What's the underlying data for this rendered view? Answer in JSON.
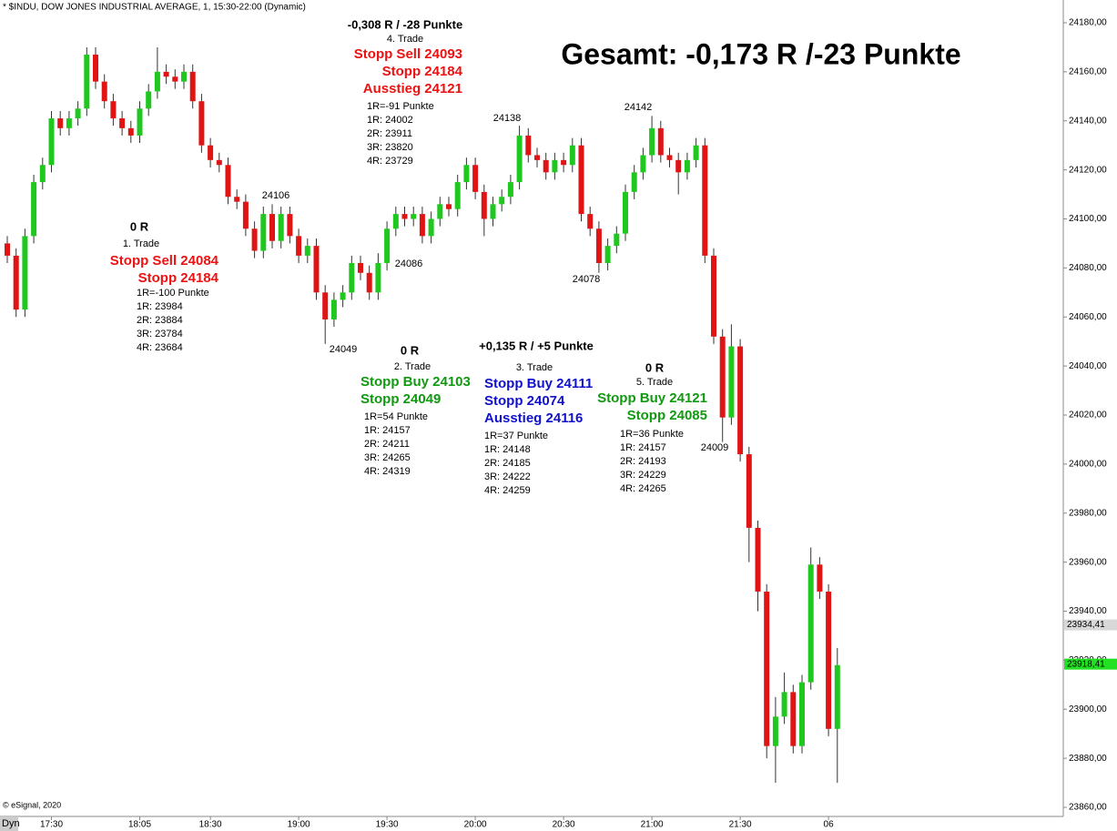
{
  "chart_data": {
    "type": "candlestick",
    "header": "* $INDU, DOW JONES INDUSTRIAL AVERAGE, 1, 15:30-22:00 (Dynamic)",
    "title": "Gesamt: -0,173 R /-23 Punkte",
    "copyright": "© eSignal, 2020",
    "mode_label": "Dyn",
    "up_color": "#1ec81e",
    "down_color": "#e01414",
    "categories": [
      null,
      null,
      null,
      null,
      null,
      "17:30",
      null,
      null,
      null,
      null,
      null,
      null,
      null,
      null,
      null,
      "18:05",
      null,
      null,
      null,
      null,
      null,
      null,
      null,
      "18:30",
      null,
      null,
      null,
      null,
      null,
      null,
      null,
      null,
      null,
      "19:00",
      null,
      null,
      null,
      null,
      null,
      null,
      null,
      null,
      null,
      "19:30",
      null,
      null,
      null,
      null,
      null,
      null,
      null,
      null,
      null,
      "20:00",
      null,
      null,
      null,
      null,
      null,
      null,
      null,
      null,
      null,
      "20:30",
      null,
      null,
      null,
      null,
      null,
      null,
      null,
      null,
      null,
      "21:00",
      null,
      null,
      null,
      null,
      null,
      null,
      null,
      null,
      null,
      "21:30",
      null,
      null,
      null,
      null,
      null,
      null,
      null,
      null,
      null,
      "06",
      null
    ],
    "open": [
      24090,
      24085,
      24063,
      24093,
      24115,
      24122,
      24141,
      24137,
      24141,
      24145,
      24167,
      24156,
      24148,
      24141,
      24137,
      24134,
      24145,
      24152,
      24160,
      24158,
      24156,
      24160,
      24148,
      24130,
      24124,
      24122,
      24109,
      24107,
      24096,
      24087,
      24102,
      24091,
      24102,
      24093,
      24085,
      24089,
      24070,
      24059,
      24067,
      24070,
      24082,
      24078,
      24070,
      24082,
      24096,
      24102,
      24100,
      24102,
      24093,
      24100,
      24106,
      24104,
      24115,
      24122,
      24111,
      24100,
      24106,
      24109,
      24115,
      24134,
      24126,
      24124,
      24119,
      24124,
      24122,
      24130,
      24102,
      24096,
      24082,
      24089,
      24094,
      24111,
      24119,
      24126,
      24137,
      24126,
      24124,
      24119,
      24124,
      24130,
      24085,
      24052,
      24019,
      24048,
      24004,
      23974,
      23948,
      23885,
      23897,
      23907,
      23885,
      23911,
      23959,
      23948,
      23892
    ],
    "high": [
      24093,
      24088,
      24096,
      24118,
      24125,
      24144,
      24144,
      24144,
      24148,
      24170,
      24170,
      24159,
      24151,
      24144,
      24140,
      24148,
      24155,
      24170,
      24163,
      24161,
      24163,
      24163,
      24151,
      24133,
      24127,
      24125,
      24112,
      24110,
      24099,
      24105,
      24106,
      24105,
      24105,
      24096,
      24092,
      24092,
      24073,
      24070,
      24073,
      24085,
      24085,
      24081,
      24086,
      24099,
      24105,
      24105,
      24105,
      24105,
      24103,
      24109,
      24109,
      24118,
      24125,
      24125,
      24114,
      24109,
      24112,
      24118,
      24138,
      24137,
      24129,
      24127,
      24127,
      24127,
      24133,
      24133,
      24105,
      24099,
      24092,
      24097,
      24114,
      24122,
      24129,
      24142,
      24140,
      24129,
      24127,
      24127,
      24133,
      24133,
      24088,
      24055,
      24057,
      24051,
      24007,
      23977,
      23951,
      23905,
      23915,
      23910,
      23914,
      23966,
      23962,
      23951,
      23925
    ],
    "low": [
      24082,
      24060,
      24060,
      24090,
      24112,
      24119,
      24134,
      24134,
      24138,
      24142,
      24153,
      24145,
      24138,
      24134,
      24131,
      24131,
      24142,
      24149,
      24155,
      24153,
      24153,
      24145,
      24127,
      24121,
      24119,
      24106,
      24104,
      24093,
      24084,
      24084,
      24088,
      24088,
      24090,
      24082,
      24082,
      24067,
      24049,
      24056,
      24064,
      24067,
      24075,
      24067,
      24067,
      24079,
      24093,
      24097,
      24097,
      24090,
      24090,
      24097,
      24101,
      24101,
      24112,
      24108,
      24093,
      24097,
      24103,
      24106,
      24112,
      24123,
      24121,
      24116,
      24116,
      24119,
      24119,
      24099,
      24093,
      24078,
      24079,
      24086,
      24091,
      24108,
      24116,
      24123,
      24123,
      24121,
      24110,
      24116,
      24121,
      24082,
      24049,
      24009,
      24016,
      24001,
      23960,
      23940,
      23880,
      23870,
      23894,
      23882,
      23882,
      23908,
      23945,
      23889,
      23870
    ],
    "close": [
      24085,
      24063,
      24093,
      24115,
      24122,
      24141,
      24137,
      24141,
      24145,
      24167,
      24156,
      24148,
      24141,
      24137,
      24134,
      24145,
      24152,
      24160,
      24158,
      24156,
      24160,
      24148,
      24130,
      24124,
      24122,
      24109,
      24107,
      24096,
      24087,
      24102,
      24091,
      24102,
      24093,
      24085,
      24089,
      24070,
      24059,
      24067,
      24070,
      24082,
      24078,
      24070,
      24082,
      24096,
      24102,
      24100,
      24102,
      24093,
      24100,
      24106,
      24104,
      24115,
      24122,
      24111,
      24100,
      24106,
      24109,
      24115,
      24134,
      24126,
      24124,
      24119,
      24124,
      24122,
      24130,
      24102,
      24096,
      24082,
      24089,
      24094,
      24111,
      24119,
      24126,
      24137,
      24126,
      24124,
      24119,
      24124,
      24130,
      24085,
      24052,
      24019,
      24048,
      24004,
      23974,
      23948,
      23885,
      23897,
      23907,
      23885,
      23911,
      23959,
      23948,
      23892,
      23918
    ],
    "ylim": [
      23860,
      24180
    ],
    "yticks": [
      {
        "value": 23860,
        "label": "23860,00"
      },
      {
        "value": 23880,
        "label": "23880,00"
      },
      {
        "value": 23900,
        "label": "23900,00"
      },
      {
        "value": 23920,
        "label": "23920,00"
      },
      {
        "value": 23940,
        "label": "23940,00"
      },
      {
        "value": 23960,
        "label": "23960,00"
      },
      {
        "value": 23980,
        "label": "23980,00"
      },
      {
        "value": 24000,
        "label": "24000,00"
      },
      {
        "value": 24020,
        "label": "24020,00"
      },
      {
        "value": 24040,
        "label": "24040,00"
      },
      {
        "value": 24060,
        "label": "24060,00"
      },
      {
        "value": 24080,
        "label": "24080,00"
      },
      {
        "value": 24100,
        "label": "24100,00"
      },
      {
        "value": 24120,
        "label": "24120,00"
      },
      {
        "value": 24140,
        "label": "24140,00"
      },
      {
        "value": 24160,
        "label": "24160,00"
      },
      {
        "value": 24180,
        "label": "24180,00"
      }
    ],
    "price_markers": [
      {
        "value": 23934.41,
        "label": "23934,41",
        "color": "#d8d8d8"
      },
      {
        "value": 23918.41,
        "label": "23918,41",
        "color": "#22e022"
      }
    ],
    "price_labels": [
      24106,
      24086,
      24049,
      24138,
      24078,
      24142,
      24009
    ],
    "trades": [
      {
        "result": "0 R",
        "name": "1. Trade",
        "color": "#ee1111",
        "orders": [
          "Stopp Sell 24084",
          "Stopp 24184"
        ],
        "levels": [
          "1R=-100 Punkte",
          "1R: 23984",
          "2R: 23884",
          "3R: 23784",
          "4R: 23684"
        ]
      },
      {
        "result": "0 R",
        "name": "2. Trade",
        "color": "#119911",
        "orders": [
          "Stopp Buy 24103",
          "Stopp 24049"
        ],
        "levels": [
          "1R=54 Punkte",
          "1R: 24157",
          "2R: 24211",
          "3R: 24265",
          "4R: 24319"
        ]
      },
      {
        "result": "+0,135 R / +5 Punkte",
        "name": "3. Trade",
        "color": "#1111cc",
        "orders": [
          "Stopp Buy 24111",
          "Stopp 24074",
          "Ausstieg 24116"
        ],
        "levels": [
          "1R=37 Punkte",
          "1R: 24148",
          "2R: 24185",
          "3R: 24222",
          "4R: 24259"
        ]
      },
      {
        "result": "-0,308 R / -28 Punkte",
        "name": "4. Trade",
        "color": "#ee1111",
        "orders": [
          "Stopp Sell 24093",
          "Stopp 24184",
          "Ausstieg 24121"
        ],
        "levels": [
          "1R=-91 Punkte",
          "1R: 24002",
          "2R: 23911",
          "3R: 23820",
          "4R: 23729"
        ]
      },
      {
        "result": "0 R",
        "name": "5. Trade",
        "color": "#119911",
        "orders": [
          "Stopp Buy 24121",
          "Stopp 24085"
        ],
        "levels": [
          "1R=36 Punkte",
          "1R: 24157",
          "2R: 24193",
          "3R: 24229",
          "4R: 24265"
        ]
      }
    ]
  }
}
